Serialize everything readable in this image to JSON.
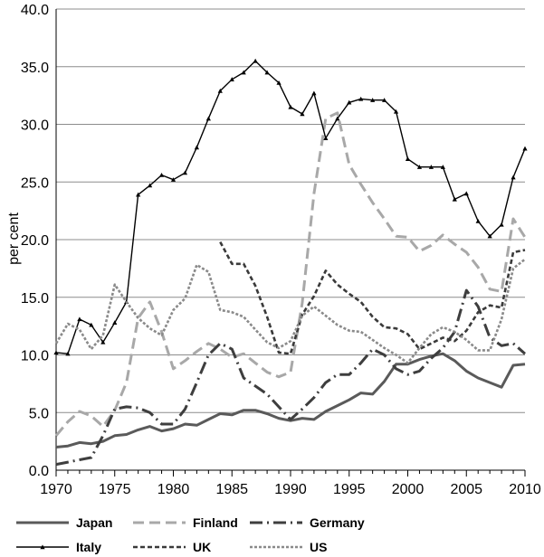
{
  "chart_data": {
    "type": "line",
    "title": "",
    "xlabel": "",
    "ylabel": "per cent",
    "xlim": [
      1970,
      2010
    ],
    "ylim": [
      0,
      40
    ],
    "x_ticks": [
      "1970",
      "1975",
      "1980",
      "1985",
      "1990",
      "1995",
      "2000",
      "2005",
      "2010"
    ],
    "y_ticks": [
      "0.0",
      "5.0",
      "10.0",
      "15.0",
      "20.0",
      "25.0",
      "30.0",
      "35.0",
      "40.0"
    ],
    "grid": "horizontal",
    "legend": "bottom",
    "series": [
      {
        "name": "Japan",
        "style": "solid-thick",
        "color": "#5a5a5a",
        "points": [
          [
            1970,
            2.0
          ],
          [
            1971,
            2.1
          ],
          [
            1972,
            2.4
          ],
          [
            1973,
            2.3
          ],
          [
            1974,
            2.5
          ],
          [
            1975,
            3.0
          ],
          [
            1976,
            3.1
          ],
          [
            1977,
            3.5
          ],
          [
            1978,
            3.8
          ],
          [
            1979,
            3.4
          ],
          [
            1980,
            3.6
          ],
          [
            1981,
            4.0
          ],
          [
            1982,
            3.9
          ],
          [
            1983,
            4.4
          ],
          [
            1984,
            4.9
          ],
          [
            1985,
            4.8
          ],
          [
            1986,
            5.2
          ],
          [
            1987,
            5.2
          ],
          [
            1988,
            4.9
          ],
          [
            1989,
            4.5
          ],
          [
            1990,
            4.3
          ],
          [
            1991,
            4.5
          ],
          [
            1992,
            4.4
          ],
          [
            1993,
            5.1
          ],
          [
            1994,
            5.6
          ],
          [
            1995,
            6.1
          ],
          [
            1996,
            6.7
          ],
          [
            1997,
            6.6
          ],
          [
            1998,
            7.7
          ],
          [
            1999,
            9.2
          ],
          [
            2000,
            9.2
          ],
          [
            2001,
            9.6
          ],
          [
            2002,
            9.9
          ],
          [
            2003,
            10.1
          ],
          [
            2004,
            9.5
          ],
          [
            2005,
            8.6
          ],
          [
            2006,
            8.0
          ],
          [
            2007,
            7.6
          ],
          [
            2008,
            7.2
          ],
          [
            2009,
            9.1
          ],
          [
            2010,
            9.2
          ]
        ]
      },
      {
        "name": "Finland",
        "style": "long-dash",
        "color": "#a8a8a8",
        "points": [
          [
            1970,
            3.0
          ],
          [
            1971,
            4.2
          ],
          [
            1972,
            5.1
          ],
          [
            1973,
            4.7
          ],
          [
            1974,
            3.8
          ],
          [
            1975,
            5.2
          ],
          [
            1976,
            7.6
          ],
          [
            1977,
            13.2
          ],
          [
            1978,
            14.6
          ],
          [
            1979,
            12.0
          ],
          [
            1980,
            8.8
          ],
          [
            1981,
            9.5
          ],
          [
            1982,
            10.3
          ],
          [
            1983,
            11.0
          ],
          [
            1984,
            10.5
          ],
          [
            1985,
            9.8
          ],
          [
            1986,
            10.1
          ],
          [
            1987,
            9.3
          ],
          [
            1988,
            8.5
          ],
          [
            1989,
            8.1
          ],
          [
            1990,
            8.5
          ],
          [
            1991,
            14.5
          ],
          [
            1992,
            24.0
          ],
          [
            1993,
            30.5
          ],
          [
            1994,
            31.0
          ],
          [
            1995,
            26.5
          ],
          [
            1996,
            24.8
          ],
          [
            1997,
            23.2
          ],
          [
            1998,
            21.8
          ],
          [
            1999,
            20.3
          ],
          [
            2000,
            20.2
          ],
          [
            2001,
            19.0
          ],
          [
            2002,
            19.5
          ],
          [
            2003,
            20.4
          ],
          [
            2004,
            19.6
          ],
          [
            2005,
            18.9
          ],
          [
            2006,
            17.6
          ],
          [
            2007,
            15.7
          ],
          [
            2008,
            15.5
          ],
          [
            2009,
            21.8
          ],
          [
            2010,
            20.2
          ]
        ]
      },
      {
        "name": "Germany",
        "style": "dash-dot",
        "color": "#3e3e3e",
        "points": [
          [
            1970,
            0.5
          ],
          [
            1971,
            0.7
          ],
          [
            1972,
            0.9
          ],
          [
            1973,
            1.1
          ],
          [
            1974,
            3.0
          ],
          [
            1975,
            5.3
          ],
          [
            1976,
            5.5
          ],
          [
            1977,
            5.4
          ],
          [
            1978,
            5.0
          ],
          [
            1979,
            4.0
          ],
          [
            1980,
            4.0
          ],
          [
            1981,
            5.3
          ],
          [
            1982,
            7.6
          ],
          [
            1983,
            10.0
          ],
          [
            1984,
            11.0
          ],
          [
            1985,
            10.5
          ],
          [
            1986,
            8.0
          ],
          [
            1987,
            7.3
          ],
          [
            1988,
            6.6
          ],
          [
            1989,
            5.5
          ],
          [
            1990,
            4.4
          ],
          [
            1991,
            5.3
          ],
          [
            1992,
            6.3
          ],
          [
            1993,
            7.6
          ],
          [
            1994,
            8.3
          ],
          [
            1995,
            8.3
          ],
          [
            1996,
            9.3
          ],
          [
            1997,
            10.5
          ],
          [
            1998,
            10.0
          ],
          [
            1999,
            8.8
          ],
          [
            2000,
            8.3
          ],
          [
            2001,
            8.6
          ],
          [
            2002,
            9.7
          ],
          [
            2003,
            10.6
          ],
          [
            2004,
            12.0
          ],
          [
            2005,
            15.6
          ],
          [
            2006,
            14.2
          ],
          [
            2007,
            11.5
          ],
          [
            2008,
            10.8
          ],
          [
            2009,
            11.0
          ],
          [
            2010,
            10.1
          ]
        ]
      },
      {
        "name": "Italy",
        "style": "solid-marker",
        "color": "#000000",
        "points": [
          [
            1970,
            10.2
          ],
          [
            1971,
            10.1
          ],
          [
            1972,
            13.1
          ],
          [
            1973,
            12.6
          ],
          [
            1974,
            11.1
          ],
          [
            1975,
            12.8
          ],
          [
            1976,
            14.6
          ],
          [
            1977,
            23.9
          ],
          [
            1978,
            24.7
          ],
          [
            1979,
            25.6
          ],
          [
            1980,
            25.2
          ],
          [
            1981,
            25.8
          ],
          [
            1982,
            28.0
          ],
          [
            1983,
            30.5
          ],
          [
            1984,
            32.9
          ],
          [
            1985,
            33.9
          ],
          [
            1986,
            34.5
          ],
          [
            1987,
            35.5
          ],
          [
            1988,
            34.5
          ],
          [
            1989,
            33.6
          ],
          [
            1990,
            31.5
          ],
          [
            1991,
            30.9
          ],
          [
            1992,
            32.7
          ],
          [
            1993,
            28.8
          ],
          [
            1994,
            30.5
          ],
          [
            1995,
            31.9
          ],
          [
            1996,
            32.2
          ],
          [
            1997,
            32.1
          ],
          [
            1998,
            32.1
          ],
          [
            1999,
            31.1
          ],
          [
            2000,
            27.0
          ],
          [
            2001,
            26.3
          ],
          [
            2002,
            26.3
          ],
          [
            2003,
            26.3
          ],
          [
            2004,
            23.5
          ],
          [
            2005,
            24.0
          ],
          [
            2006,
            21.6
          ],
          [
            2007,
            20.3
          ],
          [
            2008,
            21.3
          ],
          [
            2009,
            25.4
          ],
          [
            2010,
            27.9
          ]
        ]
      },
      {
        "name": "UK",
        "style": "short-dash",
        "color": "#3a3a3a",
        "points": [
          [
            1984,
            19.8
          ],
          [
            1985,
            17.9
          ],
          [
            1986,
            17.9
          ],
          [
            1987,
            16.0
          ],
          [
            1988,
            13.3
          ],
          [
            1989,
            10.2
          ],
          [
            1990,
            10.1
          ],
          [
            1991,
            13.5
          ],
          [
            1992,
            15.1
          ],
          [
            1993,
            17.3
          ],
          [
            1994,
            16.1
          ],
          [
            1995,
            15.3
          ],
          [
            1996,
            14.6
          ],
          [
            1997,
            13.3
          ],
          [
            1998,
            12.4
          ],
          [
            1999,
            12.3
          ],
          [
            2000,
            11.8
          ],
          [
            2001,
            10.5
          ],
          [
            2002,
            11.0
          ],
          [
            2003,
            11.5
          ],
          [
            2004,
            11.2
          ],
          [
            2005,
            12.1
          ],
          [
            2006,
            13.7
          ],
          [
            2007,
            14.3
          ],
          [
            2008,
            14.1
          ],
          [
            2009,
            18.9
          ],
          [
            2010,
            19.1
          ]
        ]
      },
      {
        "name": "US",
        "style": "dotted",
        "color": "#8a8a8a",
        "points": [
          [
            1970,
            11.0
          ],
          [
            1971,
            12.7
          ],
          [
            1972,
            12.2
          ],
          [
            1973,
            10.5
          ],
          [
            1974,
            11.7
          ],
          [
            1975,
            16.1
          ],
          [
            1976,
            14.6
          ],
          [
            1977,
            13.2
          ],
          [
            1978,
            12.3
          ],
          [
            1979,
            11.7
          ],
          [
            1980,
            13.9
          ],
          [
            1981,
            14.9
          ],
          [
            1982,
            17.8
          ],
          [
            1983,
            17.2
          ],
          [
            1984,
            13.9
          ],
          [
            1985,
            13.7
          ],
          [
            1986,
            13.3
          ],
          [
            1987,
            12.2
          ],
          [
            1988,
            11.1
          ],
          [
            1989,
            10.6
          ],
          [
            1990,
            11.2
          ],
          [
            1991,
            13.4
          ],
          [
            1992,
            14.2
          ],
          [
            1993,
            13.4
          ],
          [
            1994,
            12.6
          ],
          [
            1995,
            12.1
          ],
          [
            1996,
            12.0
          ],
          [
            1997,
            11.3
          ],
          [
            1998,
            10.6
          ],
          [
            1999,
            10.0
          ],
          [
            2000,
            9.3
          ],
          [
            2001,
            10.6
          ],
          [
            2002,
            11.8
          ],
          [
            2003,
            12.4
          ],
          [
            2004,
            12.0
          ],
          [
            2005,
            11.3
          ],
          [
            2006,
            10.4
          ],
          [
            2007,
            10.4
          ],
          [
            2008,
            13.1
          ],
          [
            2009,
            17.5
          ],
          [
            2010,
            18.3
          ]
        ]
      }
    ]
  }
}
